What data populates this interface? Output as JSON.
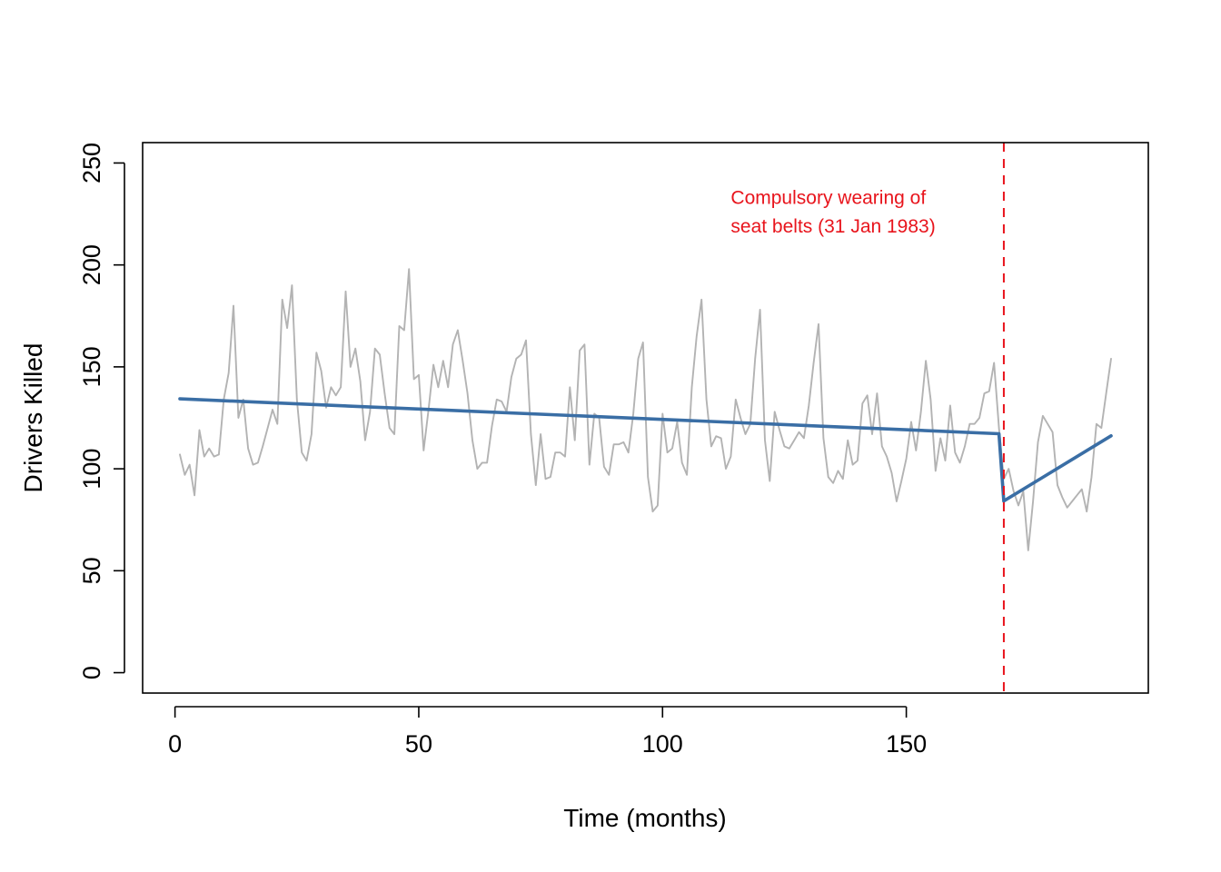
{
  "chart_data": {
    "type": "line",
    "title": "",
    "xlabel": "Time (months)",
    "ylabel": "Drivers Killed",
    "xlim": [
      1,
      192
    ],
    "ylim": [
      0,
      250
    ],
    "x_ticks": [
      0,
      50,
      100,
      150
    ],
    "y_ticks": [
      0,
      50,
      100,
      150,
      200,
      250
    ],
    "grid": false,
    "legend": "none",
    "series": [
      {
        "color": "#b3b3b3",
        "style": "thin",
        "x_start": 1,
        "values": [
          107,
          97,
          102,
          87,
          119,
          106,
          110,
          106,
          107,
          134,
          147,
          180,
          125,
          134,
          110,
          102,
          103,
          111,
          120,
          129,
          122,
          183,
          169,
          190,
          134,
          108,
          104,
          117,
          157,
          148,
          130,
          140,
          136,
          140,
          187,
          150,
          159,
          143,
          114,
          128,
          159,
          156,
          137,
          120,
          117,
          170,
          168,
          198,
          144,
          146,
          109,
          129,
          151,
          140,
          153,
          140,
          161,
          168,
          153,
          137,
          114,
          100,
          103,
          103,
          121,
          134,
          133,
          128,
          145,
          154,
          156,
          163,
          117,
          92,
          117,
          95,
          96,
          108,
          108,
          106,
          140,
          114,
          158,
          161,
          102,
          127,
          125,
          101,
          97,
          112,
          112,
          113,
          108,
          127,
          154,
          162,
          96,
          79,
          82,
          127,
          108,
          110,
          123,
          103,
          97,
          140,
          165,
          183,
          134,
          111,
          116,
          115,
          100,
          106,
          134,
          125,
          117,
          122,
          154,
          178,
          114,
          94,
          128,
          119,
          111,
          110,
          114,
          118,
          115,
          131,
          152,
          171,
          115,
          96,
          93,
          99,
          95,
          114,
          102,
          104,
          132,
          136,
          117,
          137,
          111,
          106,
          98,
          84,
          94,
          105,
          123,
          109,
          128,
          153,
          134,
          99,
          115,
          104,
          131,
          108,
          103,
          111,
          122,
          122,
          125,
          137,
          138,
          152,
          120,
          95,
          100,
          89,
          82,
          89,
          60,
          84,
          113,
          126,
          122,
          118,
          92,
          86,
          81,
          84,
          87,
          90,
          79,
          96,
          122,
          120,
          137,
          154
        ]
      },
      {
        "color": "#3a6ea5",
        "style": "thick",
        "points": [
          [
            1,
            134.3
          ],
          [
            169,
            117.2
          ],
          [
            170,
            84.2
          ],
          [
            192,
            116.2
          ]
        ]
      }
    ],
    "vline": {
      "x": 170,
      "color": "#e8141c",
      "style": "dashed"
    },
    "annotations": [
      {
        "text": "Compulsory wearing of",
        "x": 114,
        "y": 230,
        "color": "#e8141c"
      },
      {
        "text": "seat belts (31 Jan 1983)",
        "x": 114,
        "y": 216,
        "color": "#e8141c"
      }
    ]
  }
}
